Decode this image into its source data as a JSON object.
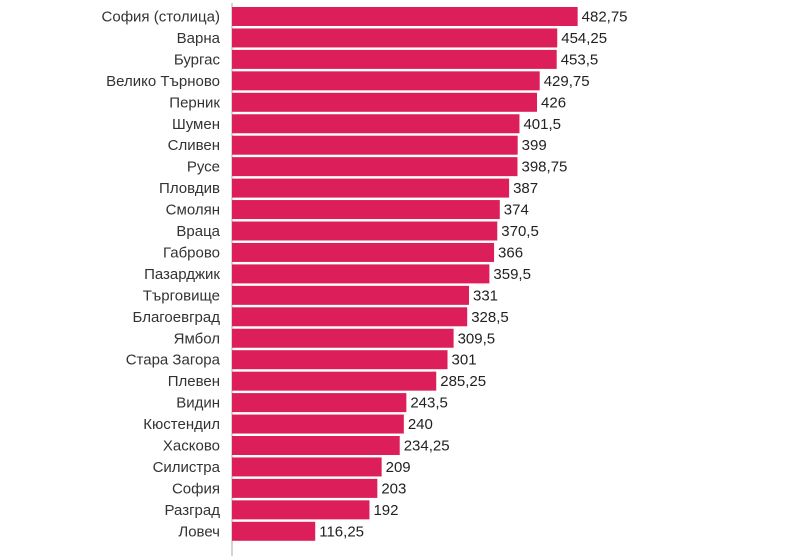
{
  "chart_data": {
    "type": "bar",
    "orientation": "horizontal",
    "bar_color": "#dc1f5a",
    "axis_color": "#aaaaaa",
    "grid": false,
    "categories": [
      "София (столица)",
      "Варна",
      "Бургас",
      "Велико Търново",
      "Перник",
      "Шумен",
      "Сливен",
      "Русе",
      "Пловдив",
      "Смолян",
      "Враца",
      "Габрово",
      "Пазарджик",
      "Търговище",
      "Благоевград",
      "Ямбол",
      "Стара Загора",
      "Плевен",
      "Видин",
      "Кюстендил",
      "Хасково",
      "Силистра",
      "София",
      "Разград",
      "Ловеч"
    ],
    "values": [
      482.75,
      454.25,
      453.5,
      429.75,
      426,
      401.5,
      399,
      398.75,
      387,
      374,
      370.5,
      366,
      359.5,
      331,
      328.5,
      309.5,
      301,
      285.25,
      243.5,
      240,
      234.25,
      209,
      203,
      192,
      116.25
    ],
    "value_labels": [
      "482,75",
      "454,25",
      "453,5",
      "429,75",
      "426",
      "401,5",
      "399",
      "398,75",
      "387",
      "374",
      "370,5",
      "366",
      "359,5",
      "331",
      "328,5",
      "309,5",
      "301",
      "285,25",
      "243,5",
      "240",
      "234,25",
      "209",
      "203",
      "192",
      "116,25"
    ],
    "xlim": [
      0,
      482.75
    ]
  }
}
